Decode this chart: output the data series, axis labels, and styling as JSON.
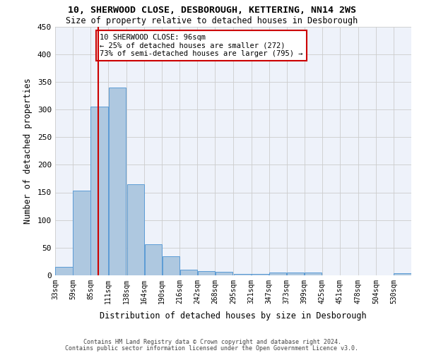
{
  "title1": "10, SHERWOOD CLOSE, DESBOROUGH, KETTERING, NN14 2WS",
  "title2": "Size of property relative to detached houses in Desborough",
  "xlabel": "Distribution of detached houses by size in Desborough",
  "ylabel": "Number of detached properties",
  "footer1": "Contains HM Land Registry data © Crown copyright and database right 2024.",
  "footer2": "Contains public sector information licensed under the Open Government Licence v3.0.",
  "annotation_line1": "10 SHERWOOD CLOSE: 96sqm",
  "annotation_line2": "← 25% of detached houses are smaller (272)",
  "annotation_line3": "73% of semi-detached houses are larger (795) →",
  "property_size": 96,
  "bar_bins": [
    33,
    59,
    85,
    111,
    138,
    164,
    190,
    216,
    242,
    268,
    295,
    321,
    347,
    373,
    399,
    425,
    451,
    478,
    504,
    530,
    556
  ],
  "bar_values": [
    15,
    153,
    305,
    340,
    165,
    56,
    34,
    10,
    8,
    6,
    3,
    3,
    5,
    5,
    5,
    0,
    0,
    0,
    0,
    4
  ],
  "bar_color": "#aec8e0",
  "bar_edge_color": "#5b9bd5",
  "grid_color": "#cccccc",
  "bg_color": "#eef2fa",
  "red_line_color": "#cc0000",
  "annotation_box_color": "#cc0000",
  "ylim": [
    0,
    450
  ],
  "yticks": [
    0,
    50,
    100,
    150,
    200,
    250,
    300,
    350,
    400,
    450
  ]
}
